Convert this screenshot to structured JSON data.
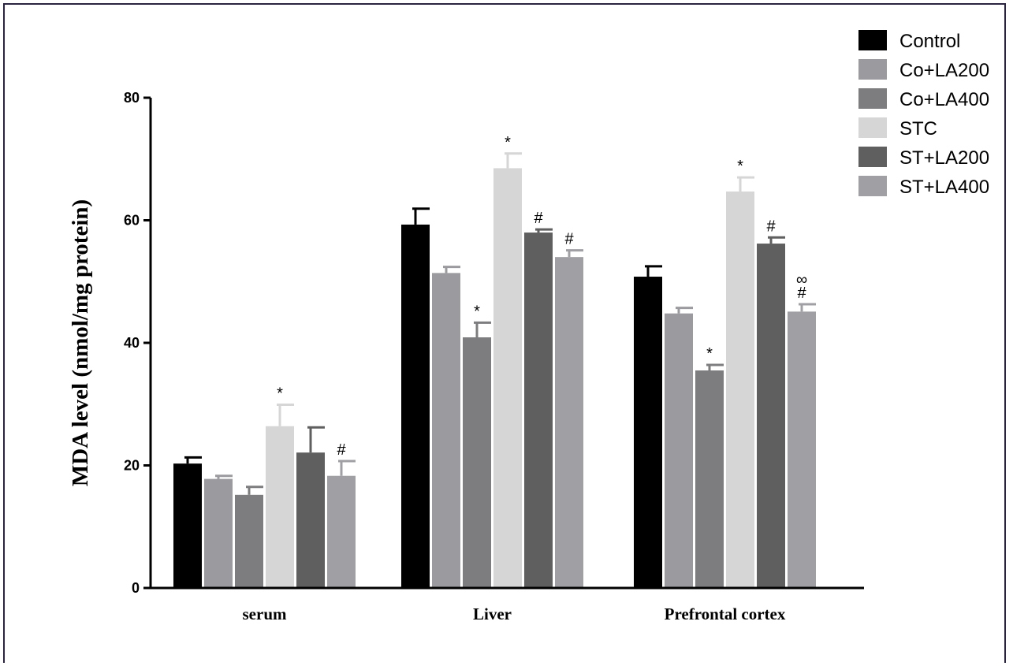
{
  "chart_data": {
    "type": "bar",
    "title": "",
    "xlabel": "",
    "ylabel": "MDA level (nmol/mg protein)",
    "ylim": [
      0,
      80
    ],
    "yticks": [
      0,
      20,
      40,
      60,
      80
    ],
    "grid": false,
    "legend_position": "top-right",
    "categories": [
      "serum",
      "Liver",
      "Prefrontal cortex"
    ],
    "series": [
      {
        "name": "Control",
        "color": "#000000",
        "values": [
          20.3,
          59.3,
          50.8
        ],
        "errors": [
          1.0,
          2.6,
          1.7
        ],
        "annotations": [
          "",
          "",
          ""
        ]
      },
      {
        "name": "Co+LA200",
        "color": "#9b9b9f",
        "values": [
          17.8,
          51.4,
          44.8
        ],
        "errors": [
          0.5,
          1.0,
          0.9
        ],
        "annotations": [
          "",
          "",
          ""
        ]
      },
      {
        "name": "Co+LA400",
        "color": "#7d7d7f",
        "values": [
          15.2,
          40.9,
          35.5
        ],
        "errors": [
          1.3,
          2.4,
          0.9
        ],
        "annotations": [
          "",
          "*",
          "*"
        ]
      },
      {
        "name": "STC",
        "color": "#d6d6d6",
        "values": [
          26.4,
          68.5,
          64.7
        ],
        "errors": [
          3.5,
          2.4,
          2.3
        ],
        "annotations": [
          "*",
          "*",
          "*"
        ]
      },
      {
        "name": "ST+LA200",
        "color": "#5f5f5f",
        "values": [
          22.1,
          58.0,
          56.2
        ],
        "errors": [
          4.1,
          0.5,
          1.0
        ],
        "annotations": [
          "",
          "#",
          "#"
        ]
      },
      {
        "name": "ST+LA400",
        "color": "#a0a0a4",
        "values": [
          18.3,
          54.0,
          45.1
        ],
        "errors": [
          2.4,
          1.1,
          1.2
        ],
        "annotations": [
          "#",
          "#",
          "#∞"
        ]
      }
    ]
  }
}
